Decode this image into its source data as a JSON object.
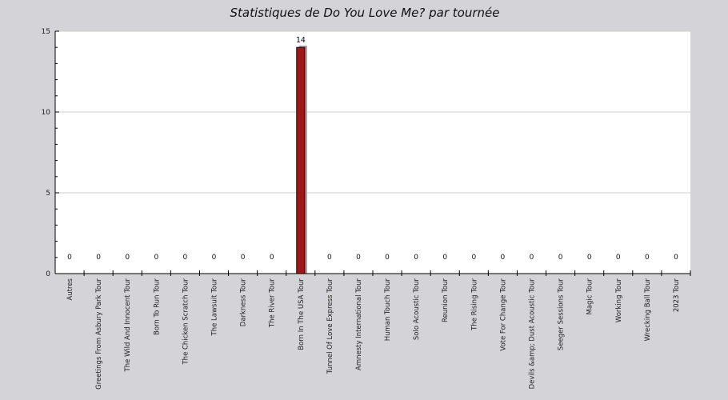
{
  "chart_data": {
    "type": "bar",
    "title": "Statistiques de Do You Love Me? par tournée",
    "xlabel": "",
    "ylabel": "",
    "ylim": [
      0,
      15
    ],
    "yticks": [
      0,
      5,
      10,
      15
    ],
    "grid": true,
    "categories": [
      "Autres",
      "Greetings From Asbury Park Tour",
      "The Wild And Innocent Tour",
      "Born To Run Tour",
      "The Chicken Scratch Tour",
      "The Lawsuit Tour",
      "Darkness Tour",
      "The River Tour",
      "Born In The USA Tour",
      "Tunnel Of Love Express Tour",
      "Amnesty International Tour",
      "Human Touch Tour",
      "Solo Acoustic Tour",
      "Reunion Tour",
      "The Rising Tour",
      "Vote For Change Tour",
      "Devils &amp; Dust Acoustic Tour",
      "Seeger Sessions Tour",
      "Magic Tour",
      "Working Tour",
      "Wrecking Ball Tour",
      "2023 Tour"
    ],
    "values": [
      0,
      0,
      0,
      0,
      0,
      0,
      0,
      0,
      14,
      0,
      0,
      0,
      0,
      0,
      0,
      0,
      0,
      0,
      0,
      0,
      0,
      0
    ],
    "data_labels": [
      "0",
      "0",
      "0",
      "0",
      "0",
      "0",
      "0",
      "0",
      "14",
      "0",
      "0",
      "0",
      "0",
      "0",
      "0",
      "0",
      "0",
      "0",
      "0",
      "0",
      "0",
      "0"
    ],
    "colors": {
      "bar": "#a01616",
      "bar_shadow": "#9a9aa2",
      "plot_bg": "#ffffff",
      "page_bg": "#d4d3d8",
      "grid": "#cccccc"
    }
  }
}
